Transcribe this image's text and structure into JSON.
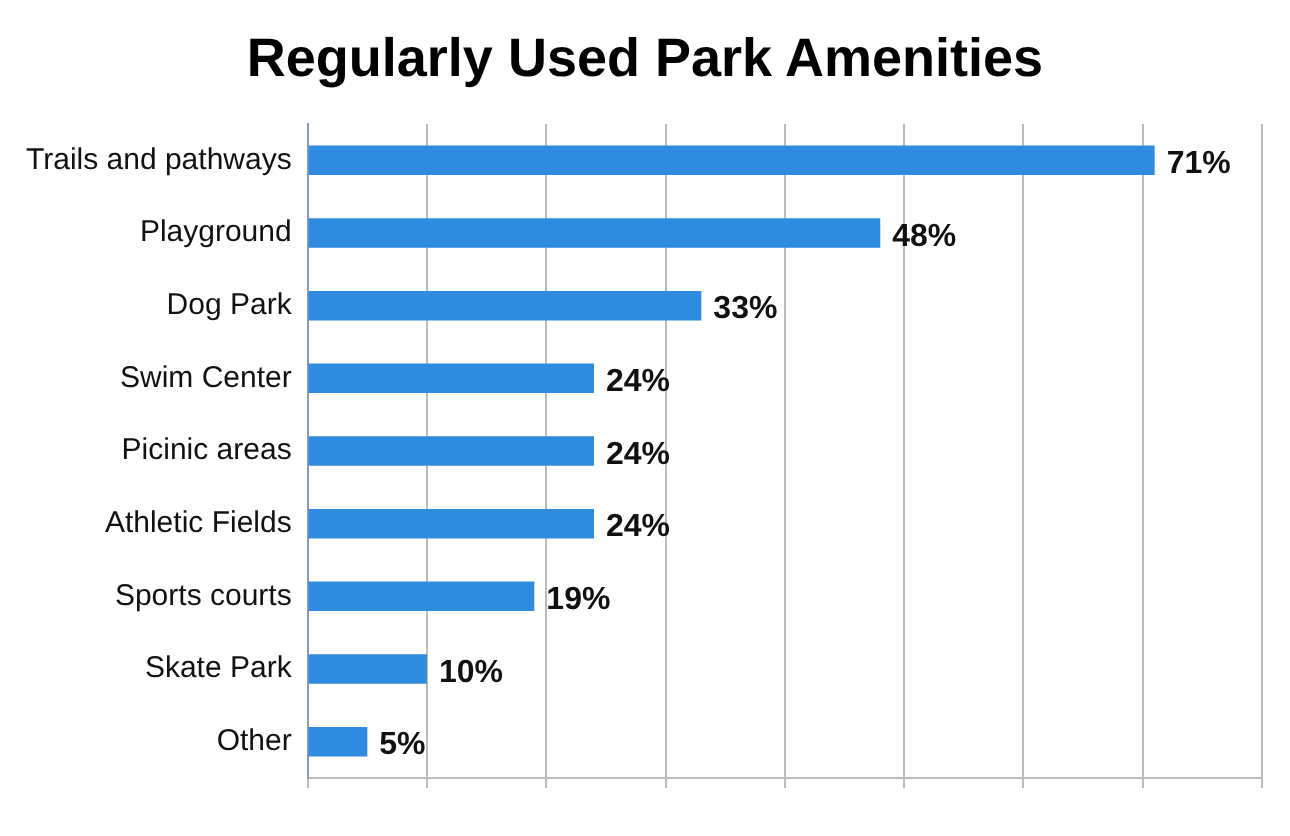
{
  "chart_data": {
    "type": "bar",
    "orientation": "horizontal",
    "title": "Regularly Used Park Amenities",
    "categories": [
      "Trails and pathways",
      "Playground",
      "Dog Park",
      "Swim Center",
      "Picinic areas",
      "Athletic Fields",
      "Sports courts",
      "Skate Park",
      "Other"
    ],
    "values": [
      71,
      48,
      33,
      24,
      24,
      24,
      19,
      10,
      5
    ],
    "value_labels": [
      "71%",
      "48%",
      "33%",
      "24%",
      "24%",
      "24%",
      "19%",
      "10%",
      "5%"
    ],
    "color": "#2e8be0",
    "xlim": [
      0,
      80
    ],
    "xticks": [
      {
        "value": 0,
        "label": null
      },
      {
        "value": 10,
        "label": null
      },
      {
        "value": 20,
        "label": null
      },
      {
        "value": 30,
        "label": null
      },
      {
        "value": 40,
        "label": null
      },
      {
        "value": 50,
        "label": null
      },
      {
        "value": 60,
        "label": null
      },
      {
        "value": 70,
        "label": null
      },
      {
        "value": 80,
        "label": null
      }
    ],
    "grid": "x",
    "tick_labels": "y",
    "legend": false
  }
}
